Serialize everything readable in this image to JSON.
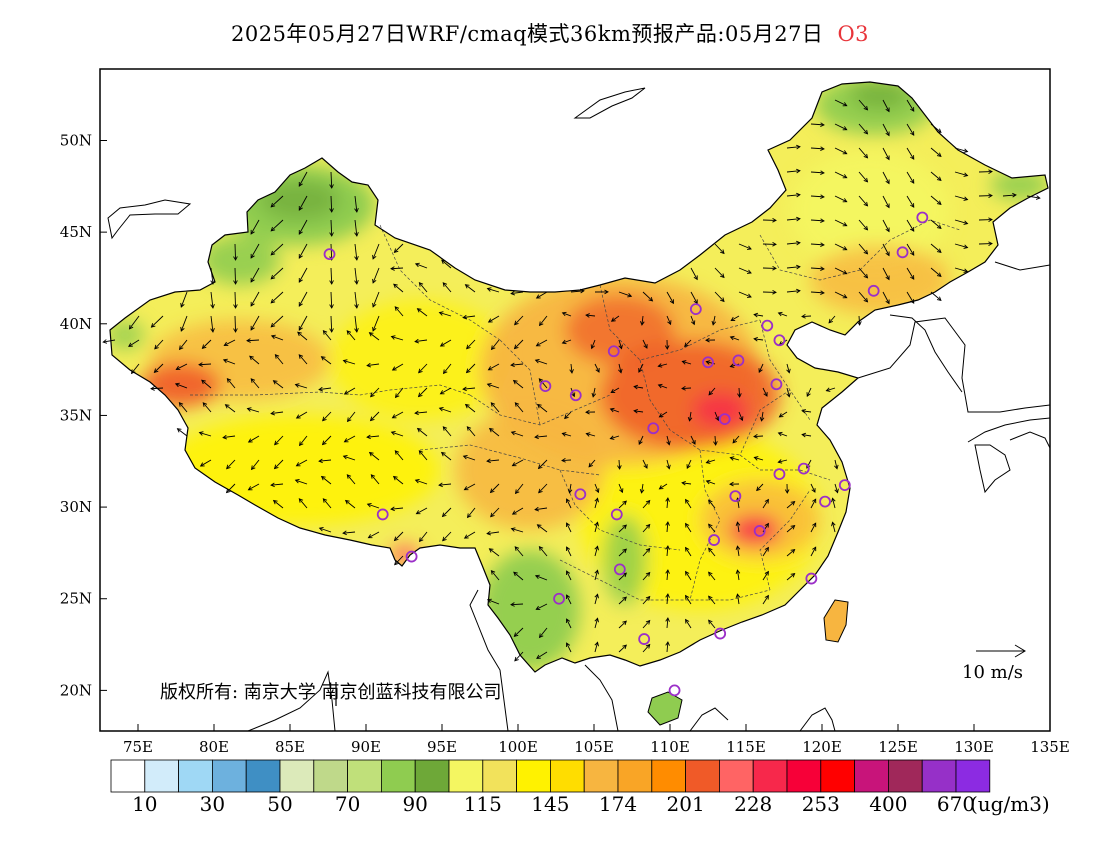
{
  "title": {
    "main": "2025年05月27日WRF/cmaq模式36km预报产品:05月27日",
    "pollutant": "O3"
  },
  "axes": {
    "y_ticks": [
      "50N",
      "45N",
      "40N",
      "35N",
      "30N",
      "25N",
      "20N"
    ],
    "x_ticks": [
      "75E",
      "80E",
      "85E",
      "90E",
      "95E",
      "100E",
      "105E",
      "110E",
      "115E",
      "120E",
      "125E",
      "130E",
      "135E"
    ]
  },
  "copyright": "版权所有: 南京大学 南京创蓝科技有限公司",
  "wind_reference": "10 m/s",
  "legend": {
    "colors": [
      "#ffffff",
      "#d2ecfa",
      "#9fd8f5",
      "#6db1de",
      "#3f8fc4",
      "#dceaba",
      "#bfd98a",
      "#c0e07a",
      "#8fcc50",
      "#6ea838",
      "#f4f661",
      "#f2e25b",
      "#fff200",
      "#ffdd00",
      "#f7b540",
      "#f9a526",
      "#ff8c00",
      "#f05a28",
      "#ff6464",
      "#f7284b",
      "#f70038",
      "#ff0000",
      "#c8147a",
      "#a0285a",
      "#9630c8",
      "#8c2be2"
    ],
    "labels": [
      "10",
      "30",
      "50",
      "70",
      "90",
      "115",
      "145",
      "174",
      "201",
      "228",
      "253",
      "400",
      "670"
    ],
    "unit": "(ug/m3)"
  },
  "stations": [
    [
      87.6,
      43.8
    ],
    [
      91.1,
      29.6
    ],
    [
      93.0,
      27.3
    ],
    [
      101.8,
      36.6
    ],
    [
      103.8,
      36.1
    ],
    [
      104.1,
      30.7
    ],
    [
      102.7,
      25.0
    ],
    [
      106.3,
      38.5
    ],
    [
      106.5,
      29.6
    ],
    [
      106.7,
      26.6
    ],
    [
      108.3,
      22.8
    ],
    [
      110.3,
      20.0
    ],
    [
      108.9,
      34.3
    ],
    [
      111.7,
      40.8
    ],
    [
      112.5,
      37.9
    ],
    [
      114.5,
      38.0
    ],
    [
      113.6,
      34.8
    ],
    [
      114.3,
      30.6
    ],
    [
      112.9,
      28.2
    ],
    [
      113.3,
      23.1
    ],
    [
      115.9,
      28.7
    ],
    [
      117.2,
      31.8
    ],
    [
      117.0,
      36.7
    ],
    [
      116.4,
      39.9
    ],
    [
      117.2,
      39.1
    ],
    [
      118.8,
      32.1
    ],
    [
      120.2,
      30.3
    ],
    [
      121.5,
      31.2
    ],
    [
      119.3,
      26.1
    ],
    [
      123.4,
      41.8
    ],
    [
      125.3,
      43.9
    ],
    [
      126.6,
      45.8
    ]
  ]
}
